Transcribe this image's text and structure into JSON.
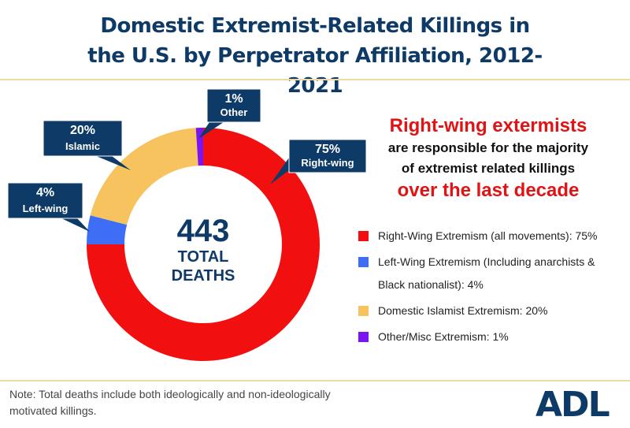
{
  "chart_data": {
    "type": "donut",
    "title": "Domestic Extremist-Related Killings in the U.S. by Perpetrator Affiliation, 2012-2021",
    "categories": [
      "Right-wing",
      "Left-wing",
      "Islamic",
      "Other"
    ],
    "values": [
      75,
      4,
      20,
      1
    ],
    "value_labels": [
      "75%",
      "4%",
      "20%",
      "1%"
    ],
    "colors": [
      "#f20f0f",
      "#3d6ef5",
      "#f7c35e",
      "#7a14f0"
    ],
    "legend": [
      "Right-Wing Extremism (all movements): 75%",
      "Left-Wing Extremism (Including anarchists & Black nationalist): 4%",
      "Domestic Islamist Extremism: 20%",
      "Other/Misc Extremism: 1%"
    ],
    "total": 443,
    "total_label": "TOTAL DEATHS",
    "headline": [
      "Right-wing extermists",
      "are responsible for the majority of extremist related killings",
      "over the last decade"
    ],
    "note": "Note: Total deaths include both ideologically and non-ideologically motivated killings.",
    "logo": "ADL"
  }
}
